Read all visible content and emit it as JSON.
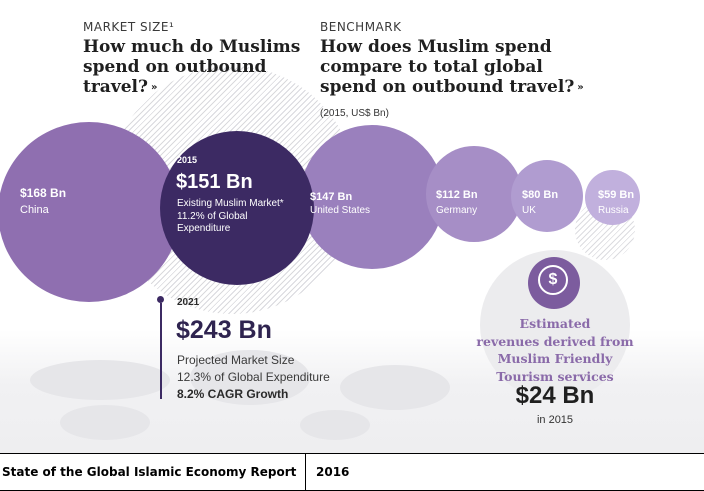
{
  "market_size": {
    "label": "MARKET SIZE¹",
    "title_line1": "How much do Muslims",
    "title_line2": "spend on outbound",
    "title_line3": "travel?",
    "chevron": "»"
  },
  "benchmark": {
    "label": "BENCHMARK",
    "title_line1": "How does Muslim spend",
    "title_line2": "compare to total global",
    "title_line3": "spend on outbound travel?",
    "chevron": "»",
    "unit_note": "(2015, US$ Bn)"
  },
  "bubbles": {
    "china": {
      "value": "$168 Bn",
      "label": "China"
    },
    "muslim_2015": {
      "year": "2015",
      "value": "$151 Bn",
      "line1": "Existing Muslim Market*",
      "line2": "11.2% of Global",
      "line3": "Expenditure"
    },
    "us": {
      "value": "$147 Bn",
      "label": "United States"
    },
    "germany": {
      "value": "$112 Bn",
      "label": "Germany"
    },
    "uk": {
      "value": "$80 Bn",
      "label": "UK"
    },
    "russia": {
      "value": "$59 Bn",
      "label": "Russia"
    }
  },
  "projection_2021": {
    "year": "2021",
    "value": "$243 Bn",
    "line1": "Projected Market Size",
    "line2": "12.3% of Global Expenditure",
    "line3": "8.2% CAGR Growth"
  },
  "revenue": {
    "coin_symbol": "$",
    "line1": "Estimated",
    "line2": "revenues derived from",
    "line3": "Muslim Friendly",
    "line4": "Tourism services",
    "value": "$24 Bn",
    "year": "in 2015"
  },
  "footer": {
    "source": "State of the Global Islamic Economy Report",
    "year": "2016"
  },
  "colors": {
    "china": "#8f6fb0",
    "muslim": "#3c2a63",
    "us": "#9a80bd",
    "germany": "#a68ec6",
    "uk": "#b09cd0",
    "russia": "#c1b0dd",
    "revenue_text": "#8a6aa9"
  }
}
